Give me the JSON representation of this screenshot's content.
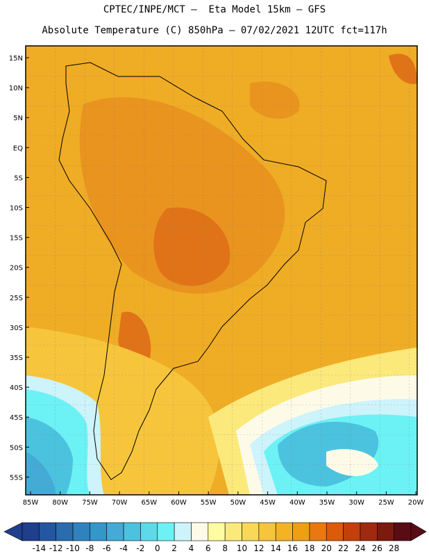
{
  "header": {
    "line1": "CPTEC/INPE/MCT –  Eta Model 15km – GFS",
    "line2": "Absolute Temperature (C) 850hPa – 07/02/2021 12UTC fct=117h"
  },
  "map": {
    "lat_labels": [
      "15N",
      "10N",
      "5N",
      "EQ",
      "5S",
      "10S",
      "15S",
      "20S",
      "25S",
      "30S",
      "35S",
      "40S",
      "45S",
      "50S",
      "55S"
    ],
    "lon_labels": [
      "85W",
      "80W",
      "75W",
      "70W",
      "65W",
      "60W",
      "55W",
      "50W",
      "45W",
      "40W",
      "35W",
      "30W",
      "25W",
      "20W"
    ]
  },
  "legend": {
    "labels": [
      "-14",
      "-12",
      "-10",
      "-8",
      "-6",
      "-4",
      "-2",
      "0",
      "2",
      "4",
      "6",
      "8",
      "10",
      "12",
      "14",
      "16",
      "18",
      "20",
      "22",
      "24",
      "26",
      "28"
    ],
    "colors": [
      "#1f3e8c",
      "#23579f",
      "#2a6cad",
      "#2f82bd",
      "#3596c9",
      "#45aad5",
      "#4bc3df",
      "#5ddaea",
      "#6cf2f5",
      "#cdf3fb",
      "#fdfbe8",
      "#fdfca0",
      "#fbe97c",
      "#f9d858",
      "#f6c53c",
      "#f3b322",
      "#ef9f12",
      "#e8780f",
      "#dd5a0b",
      "#c43f0c",
      "#a02a0d",
      "#7c1a0d",
      "#5a0c14"
    ]
  }
}
